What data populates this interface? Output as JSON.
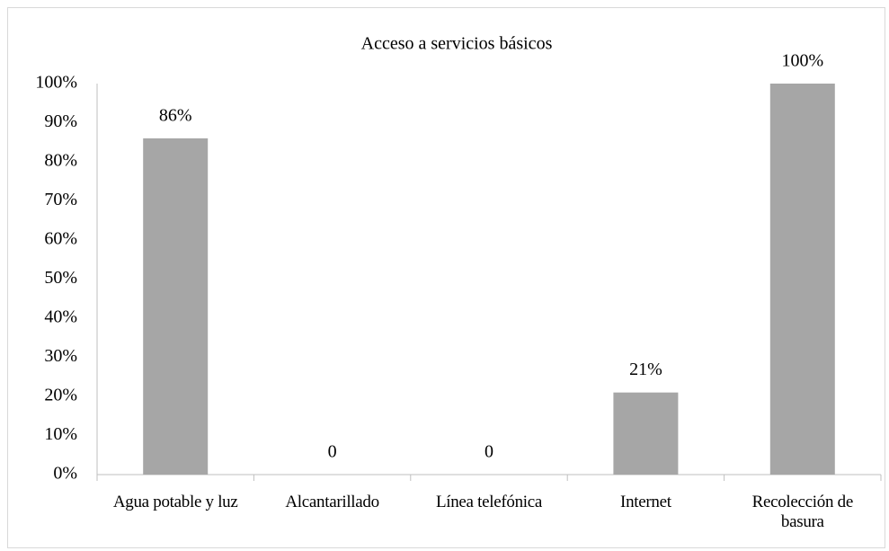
{
  "chart_data": {
    "type": "bar",
    "title": "Acceso a servicios  básicos",
    "categories": [
      "Agua potable y luz",
      "Alcantarillado",
      "Línea telefónica",
      "Internet",
      "Recolección de basura"
    ],
    "values": [
      86,
      0,
      0,
      21,
      100
    ],
    "value_labels": [
      "86%",
      "0",
      "0",
      "21%",
      "100%"
    ],
    "color": "#a6a6a6",
    "ylim": [
      0,
      100
    ],
    "yticks": [
      {
        "value": 0,
        "label": "0%"
      },
      {
        "value": 10,
        "label": "10%"
      },
      {
        "value": 20,
        "label": "20%"
      },
      {
        "value": 30,
        "label": "30%"
      },
      {
        "value": 40,
        "label": "40%"
      },
      {
        "value": 50,
        "label": "50%"
      },
      {
        "value": 60,
        "label": "60%"
      },
      {
        "value": 70,
        "label": "70%"
      },
      {
        "value": 80,
        "label": "80%"
      },
      {
        "value": 90,
        "label": "90%"
      },
      {
        "value": 100,
        "label": "100%"
      }
    ],
    "grid": false
  }
}
